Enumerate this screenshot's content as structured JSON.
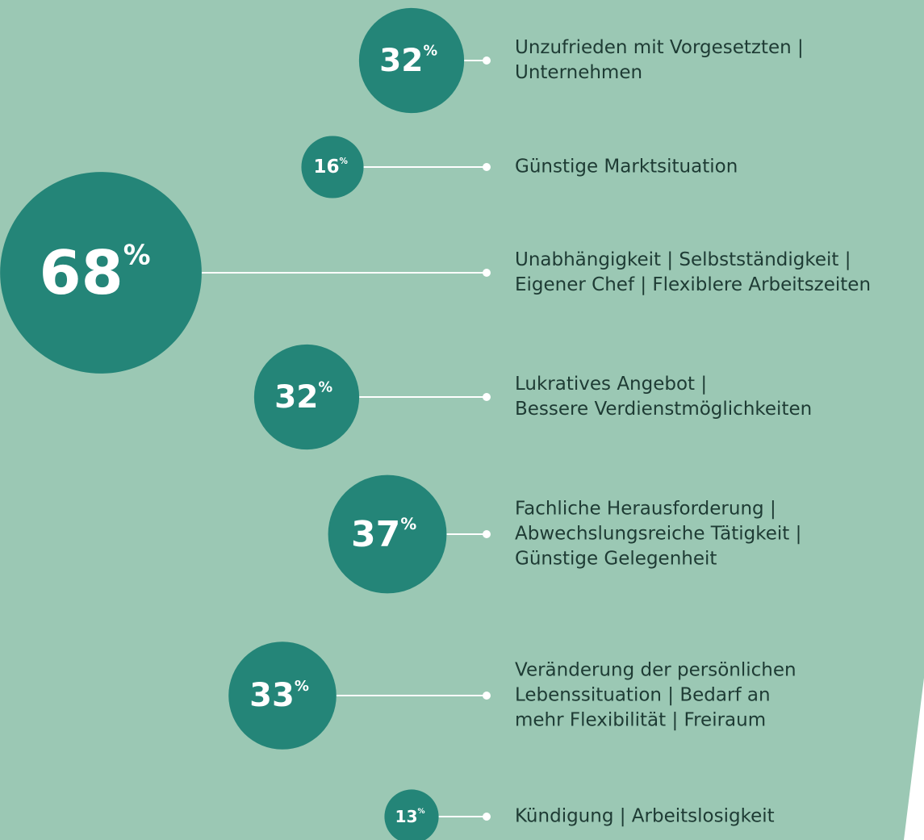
{
  "chart_data": {
    "type": "bubble",
    "unit": "%",
    "categories": [
      [
        "Unzufrieden mit Vorgesetzten |",
        "Unternehmen"
      ],
      [
        "Günstige Marktsituation"
      ],
      [
        "Unabhängigkeit | Selbstständigkeit |",
        "Eigener Chef | Flexiblere Arbeitszeiten"
      ],
      [
        "Lukratives Angebot |",
        "Bessere Verdienstmöglichkeiten"
      ],
      [
        "Fachliche Herausforderung |",
        "Abwechslungsreiche Tätigkeit |",
        "Günstige Gelegenheit"
      ],
      [
        "Veränderung der persönlichen",
        "Lebenssituation | Bedarf an",
        "mehr Flexibilität | Freiraum"
      ],
      [
        "Kündigung | Arbeitslosigkeit"
      ]
    ],
    "values": [
      32,
      16,
      68,
      32,
      37,
      33,
      13
    ],
    "color": "#248578"
  }
}
